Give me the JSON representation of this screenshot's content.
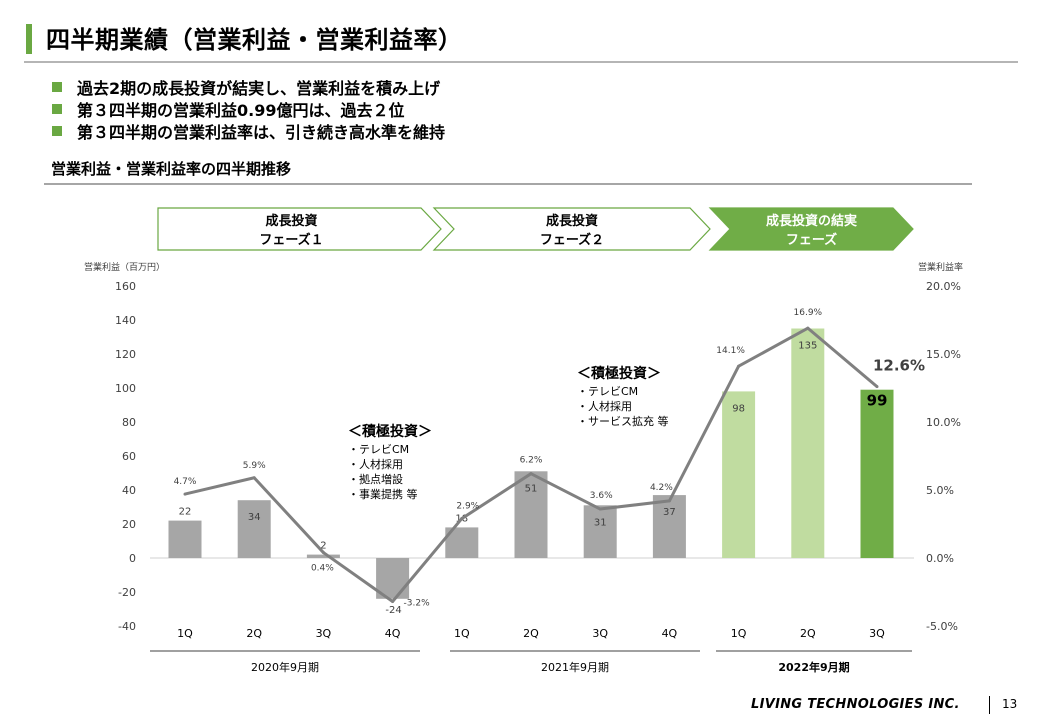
{
  "page": {
    "title": "四半期業績（営業利益・営業利益率）",
    "bullets": [
      "過去2期の成長投資が結実し、営業利益を積み上げ",
      "第３四半期の営業利益0.99億円は、過去２位",
      "第３四半期の営業利益率は、引き続き高水準を維持"
    ],
    "section_title": "営業利益・営業利益率の四半期推移",
    "footer_brand": "LIVING TECHNOLOGIES INC.",
    "page_number": "13"
  },
  "colors": {
    "accent": "#6aa842",
    "bar_gray": "#a6a6a6",
    "bar_light_green": "#c0dca0",
    "bar_green": "#70ad47",
    "line": "#808080"
  },
  "chart_data": {
    "type": "bar",
    "y_left_label": "営業利益（百万円）",
    "y_right_label": "営業利益率",
    "y_left_ticks": [
      "160",
      "140",
      "120",
      "100",
      "80",
      "60",
      "40",
      "20",
      "0",
      "-20",
      "-40"
    ],
    "y_right_ticks": [
      "20.0%",
      "15.0%",
      "10.0%",
      "5.0%",
      "0.0%",
      "-5.0%"
    ],
    "ylim_left": [
      -40,
      160
    ],
    "ylim_right": [
      -5.0,
      20.0
    ],
    "categories": [
      "1Q",
      "2Q",
      "3Q",
      "4Q",
      "1Q",
      "2Q",
      "3Q",
      "4Q",
      "1Q",
      "2Q",
      "3Q"
    ],
    "series": [
      {
        "kind": "bar",
        "axis": "left",
        "values": [
          22,
          34,
          2,
          -24,
          18,
          51,
          31,
          37,
          98,
          135,
          99
        ],
        "labels": [
          "22",
          "34",
          "2",
          "-24",
          "18",
          "51",
          "31",
          "37",
          "98",
          "135",
          "99"
        ]
      },
      {
        "kind": "line",
        "axis": "right",
        "values": [
          4.7,
          5.9,
          0.4,
          -3.2,
          2.9,
          6.2,
          3.6,
          4.2,
          14.1,
          16.9,
          12.6
        ],
        "labels": [
          "4.7%",
          "5.9%",
          "0.4%",
          "-3.2%",
          "2.9%",
          "6.2%",
          "3.6%",
          "4.2%",
          "14.1%",
          "16.9%",
          "12.6%"
        ]
      }
    ],
    "periods": [
      "2020年9月期",
      "2021年9月期",
      "2022年9月期"
    ],
    "phases": [
      [
        "成長投資",
        "フェーズ１"
      ],
      [
        "成長投資",
        "フェーズ２"
      ],
      [
        "成長投資の結実",
        "フェーズ"
      ]
    ],
    "annotations": [
      {
        "title": "＜積極投資＞",
        "items": [
          "・テレビCM",
          "・人材採用",
          "・拠点増設",
          "・事業提携 等"
        ]
      },
      {
        "title": "＜積極投資＞",
        "items": [
          "・テレビCM",
          "・人材採用",
          "・サービス拡充 等"
        ]
      }
    ]
  }
}
